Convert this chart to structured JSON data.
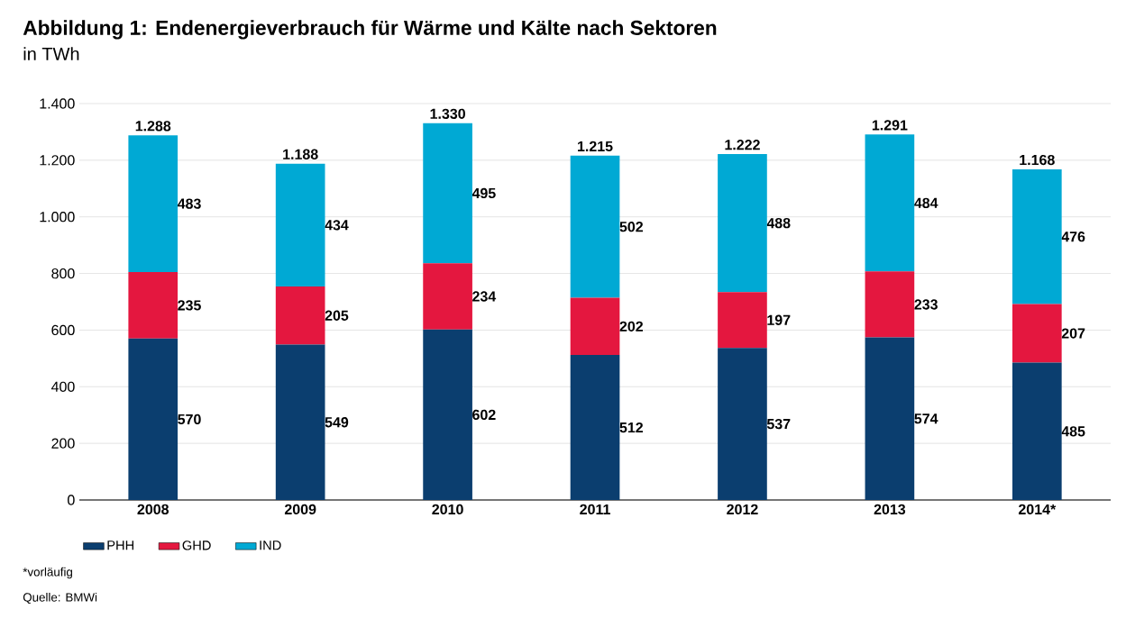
{
  "chart_data": {
    "type": "bar",
    "stacked": true,
    "title": "Abbildung 1: Endenergieverbrauch für Wärme und Kälte nach Sektoren",
    "subtitle": "in TWh",
    "categories": [
      "2008",
      "2009",
      "2010",
      "2011",
      "2012",
      "2013",
      "2014*"
    ],
    "series": [
      {
        "name": "PHH",
        "color": "#0b3e6f",
        "values": [
          570,
          549,
          602,
          512,
          537,
          574,
          485
        ]
      },
      {
        "name": "GHD",
        "color": "#e4173f",
        "values": [
          235,
          205,
          234,
          202,
          197,
          233,
          207
        ]
      },
      {
        "name": "IND",
        "color": "#00a9d4",
        "values": [
          483,
          434,
          495,
          502,
          488,
          484,
          476
        ]
      }
    ],
    "totals": [
      "1.288",
      "1.188",
      "1.330",
      "1.215",
      "1.222",
      "1.291",
      "1.168"
    ],
    "data_labels": true,
    "ylim": [
      0,
      1400
    ],
    "yticks": [
      0,
      200,
      400,
      600,
      800,
      {
        "value": 1000,
        "label": "1.000"
      },
      {
        "value": 1200,
        "label": "1.200"
      },
      {
        "value": 1400,
        "label": "1.400"
      }
    ],
    "grid": "y",
    "legend": "bottom left",
    "annotations": [
      "*vorläufig",
      "Quelle: BMWi"
    ]
  }
}
